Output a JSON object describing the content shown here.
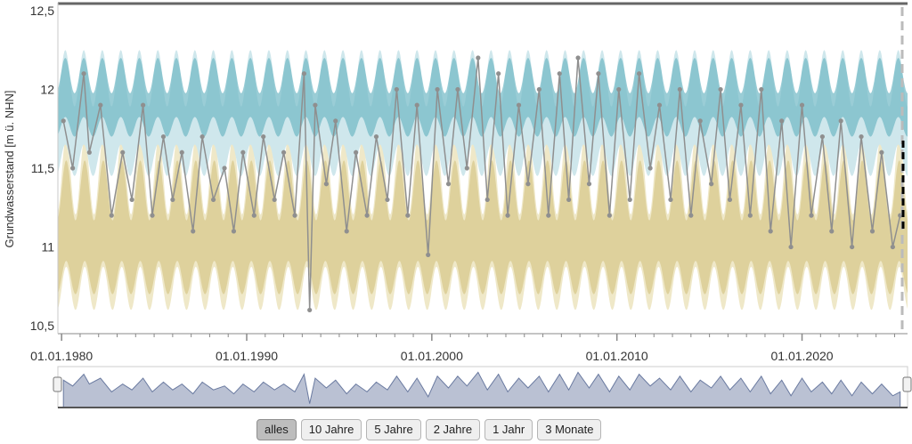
{
  "chart_data": {
    "type": "line",
    "ylabel": "Grundwasserstand [m ü. NHN]",
    "y_ticks": [
      "10,5",
      "11",
      "11,5",
      "12",
      "12,5"
    ],
    "y_tick_values": [
      10.5,
      11,
      11.5,
      12,
      12.5
    ],
    "ylim": [
      10.45,
      12.55
    ],
    "x_ticks": [
      "01.01.1980",
      "01.01.1990",
      "01.01.2000",
      "01.01.2010",
      "01.01.2020"
    ],
    "x_tick_values": [
      1980,
      1990,
      2000,
      2010,
      2020
    ],
    "xlim": [
      1979.8,
      2025.7
    ],
    "x_unit": "year",
    "grid": false,
    "colors": {
      "measurement": "#8f8f8f",
      "band_upper": "#6fb8c4",
      "band_upper_light": "#cfe7ec",
      "band_lower": "#d8c98e",
      "band_lower_light": "#efe8c8",
      "navigator_fill": "#a9b2c8",
      "navigator_line": "#6a7aa0",
      "forecast": "#000000"
    },
    "series": [
      {
        "role": "measurements",
        "x": [
          1980.1,
          1980.6,
          1981.2,
          1981.5,
          1982.1,
          1982.7,
          1983.3,
          1983.8,
          1984.4,
          1984.9,
          1985.5,
          1986.0,
          1986.5,
          1987.1,
          1987.6,
          1988.2,
          1988.8,
          1989.3,
          1989.8,
          1990.4,
          1990.9,
          1991.5,
          1992.0,
          1992.6,
          1993.1,
          1993.4,
          1993.7,
          1994.3,
          1994.8,
          1995.4,
          1995.9,
          1996.5,
          1997.0,
          1997.6,
          1998.1,
          1998.7,
          1999.2,
          1999.8,
          2000.3,
          2000.9,
          2001.4,
          2001.9,
          2002.5,
          2003.0,
          2003.6,
          2004.1,
          2004.7,
          2005.2,
          2005.8,
          2006.3,
          2006.9,
          2007.4,
          2007.9,
          2008.5,
          2009.0,
          2009.6,
          2010.1,
          2010.7,
          2011.2,
          2011.8,
          2012.3,
          2012.9,
          2013.4,
          2014.0,
          2014.5,
          2015.1,
          2015.6,
          2016.1,
          2016.7,
          2017.2,
          2017.8,
          2018.3,
          2018.9,
          2019.4,
          2020.0,
          2020.5,
          2021.1,
          2021.6,
          2022.1,
          2022.7,
          2023.2,
          2023.8,
          2024.3,
          2024.9,
          2025.3
        ],
        "y": [
          11.8,
          11.5,
          12.1,
          11.6,
          11.9,
          11.2,
          11.6,
          11.3,
          11.9,
          11.2,
          11.7,
          11.3,
          11.6,
          11.1,
          11.7,
          11.3,
          11.5,
          11.1,
          11.6,
          11.2,
          11.7,
          11.3,
          11.6,
          11.2,
          12.1,
          10.6,
          11.9,
          11.4,
          11.8,
          11.1,
          11.6,
          11.2,
          11.7,
          11.3,
          12.0,
          11.2,
          11.9,
          10.95,
          12.0,
          11.4,
          12.0,
          11.5,
          12.2,
          11.3,
          12.1,
          11.2,
          11.9,
          11.4,
          12.0,
          11.2,
          12.1,
          11.3,
          12.2,
          11.4,
          12.1,
          11.2,
          12.0,
          11.3,
          12.1,
          11.5,
          11.9,
          11.3,
          12.0,
          11.2,
          11.8,
          11.4,
          12.0,
          11.3,
          11.9,
          11.2,
          12.0,
          11.1,
          11.8,
          11.0,
          11.9,
          11.2,
          11.7,
          11.1,
          11.8,
          11.0,
          11.7,
          11.1,
          11.6,
          11.0,
          11.2
        ]
      },
      {
        "role": "upper_band",
        "seasonal_high": 12.25,
        "seasonal_low": 11.7
      },
      {
        "role": "lower_band",
        "seasonal_high": 11.7,
        "seasonal_low": 10.6
      }
    ],
    "navigator": {
      "type": "area",
      "series_ref": "measurements"
    }
  },
  "range_buttons": {
    "all": "alles",
    "ten_years": "10 Jahre",
    "five_years": "5 Jahre",
    "two_years": "2 Jahre",
    "one_year": "1 Jahr",
    "three_months": "3 Monate",
    "active": "all"
  }
}
